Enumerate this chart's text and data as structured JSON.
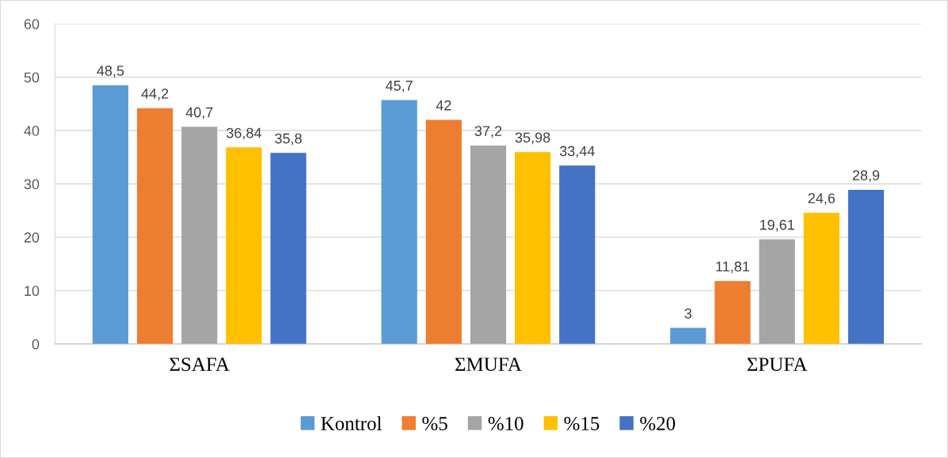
{
  "chart_data": {
    "type": "bar",
    "categories": [
      "ΣSAFA",
      "ΣMUFA",
      "ΣPUFA"
    ],
    "series": [
      {
        "name": "Kontrol",
        "color": "#5b9bd5",
        "values": [
          48.5,
          45.7,
          3
        ],
        "value_labels": [
          "48,5",
          "45,7",
          "3"
        ]
      },
      {
        "name": "%5",
        "color": "#ed7d31",
        "values": [
          44.2,
          42,
          11.81
        ],
        "value_labels": [
          "44,2",
          "42",
          "11,81"
        ]
      },
      {
        "name": "%10",
        "color": "#a5a5a5",
        "values": [
          40.7,
          37.2,
          19.61
        ],
        "value_labels": [
          "40,7",
          "37,2",
          "19,61"
        ]
      },
      {
        "name": "%15",
        "color": "#ffc000",
        "values": [
          36.84,
          35.98,
          24.6
        ],
        "value_labels": [
          "36,84",
          "35,98",
          "24,6"
        ]
      },
      {
        "name": "%20",
        "color": "#4472c4",
        "values": [
          35.8,
          33.44,
          28.9
        ],
        "value_labels": [
          "35,8",
          "33,44",
          "28,9"
        ]
      }
    ],
    "ylim": [
      0,
      60
    ],
    "yticks": [
      0,
      10,
      20,
      30,
      40,
      50,
      60
    ],
    "grid": "y",
    "legend": "bottom"
  }
}
